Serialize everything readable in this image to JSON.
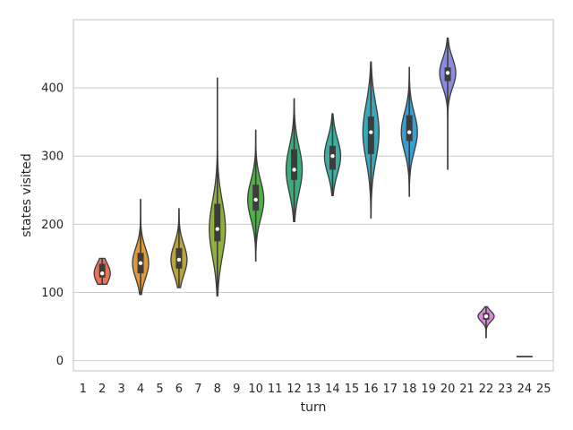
{
  "chart_data": {
    "type": "violin",
    "xlabel": "turn",
    "ylabel": "states visited",
    "categories": [
      "1",
      "2",
      "3",
      "4",
      "5",
      "6",
      "7",
      "8",
      "9",
      "10",
      "11",
      "12",
      "13",
      "14",
      "15",
      "16",
      "17",
      "18",
      "19",
      "20",
      "21",
      "22",
      "23",
      "24",
      "25"
    ],
    "ylim": [
      -15,
      500
    ],
    "yticks": [
      0,
      100,
      200,
      300,
      400
    ],
    "grid": "horizontal",
    "violins": [
      {
        "turn": "2",
        "min": 112,
        "max": 150,
        "q1": 122,
        "q3": 142,
        "median": 128,
        "color": "#e8735a"
      },
      {
        "turn": "4",
        "min": 97,
        "max": 237,
        "q1": 128,
        "q3": 158,
        "median": 143,
        "color": "#e0983a"
      },
      {
        "turn": "6",
        "min": 107,
        "max": 223,
        "q1": 135,
        "q3": 165,
        "median": 148,
        "color": "#b8a43a"
      },
      {
        "turn": "8",
        "min": 95,
        "max": 415,
        "q1": 175,
        "q3": 230,
        "median": 193,
        "color": "#8fb03a"
      },
      {
        "turn": "10",
        "min": 146,
        "max": 338,
        "q1": 220,
        "q3": 258,
        "median": 236,
        "color": "#4fb04a"
      },
      {
        "turn": "12",
        "min": 204,
        "max": 384,
        "q1": 265,
        "q3": 310,
        "median": 280,
        "color": "#3aae7a"
      },
      {
        "turn": "14",
        "min": 242,
        "max": 362,
        "q1": 280,
        "q3": 315,
        "median": 300,
        "color": "#3aaea0"
      },
      {
        "turn": "16",
        "min": 209,
        "max": 438,
        "q1": 303,
        "q3": 358,
        "median": 335,
        "color": "#3aa8b8"
      },
      {
        "turn": "18",
        "min": 241,
        "max": 430,
        "q1": 322,
        "q3": 360,
        "median": 335,
        "color": "#3a9ed0"
      },
      {
        "turn": "20",
        "min": 280,
        "max": 473,
        "q1": 410,
        "q3": 430,
        "median": 422,
        "color": "#8a8ae0"
      },
      {
        "turn": "22",
        "min": 33,
        "max": 79,
        "q1": 60,
        "q3": 70,
        "median": 65,
        "color": "#d88ad8"
      },
      {
        "turn": "24",
        "min": 6,
        "max": 6,
        "q1": 6,
        "q3": 6,
        "median": 6,
        "color": "#e88aa8"
      }
    ]
  }
}
